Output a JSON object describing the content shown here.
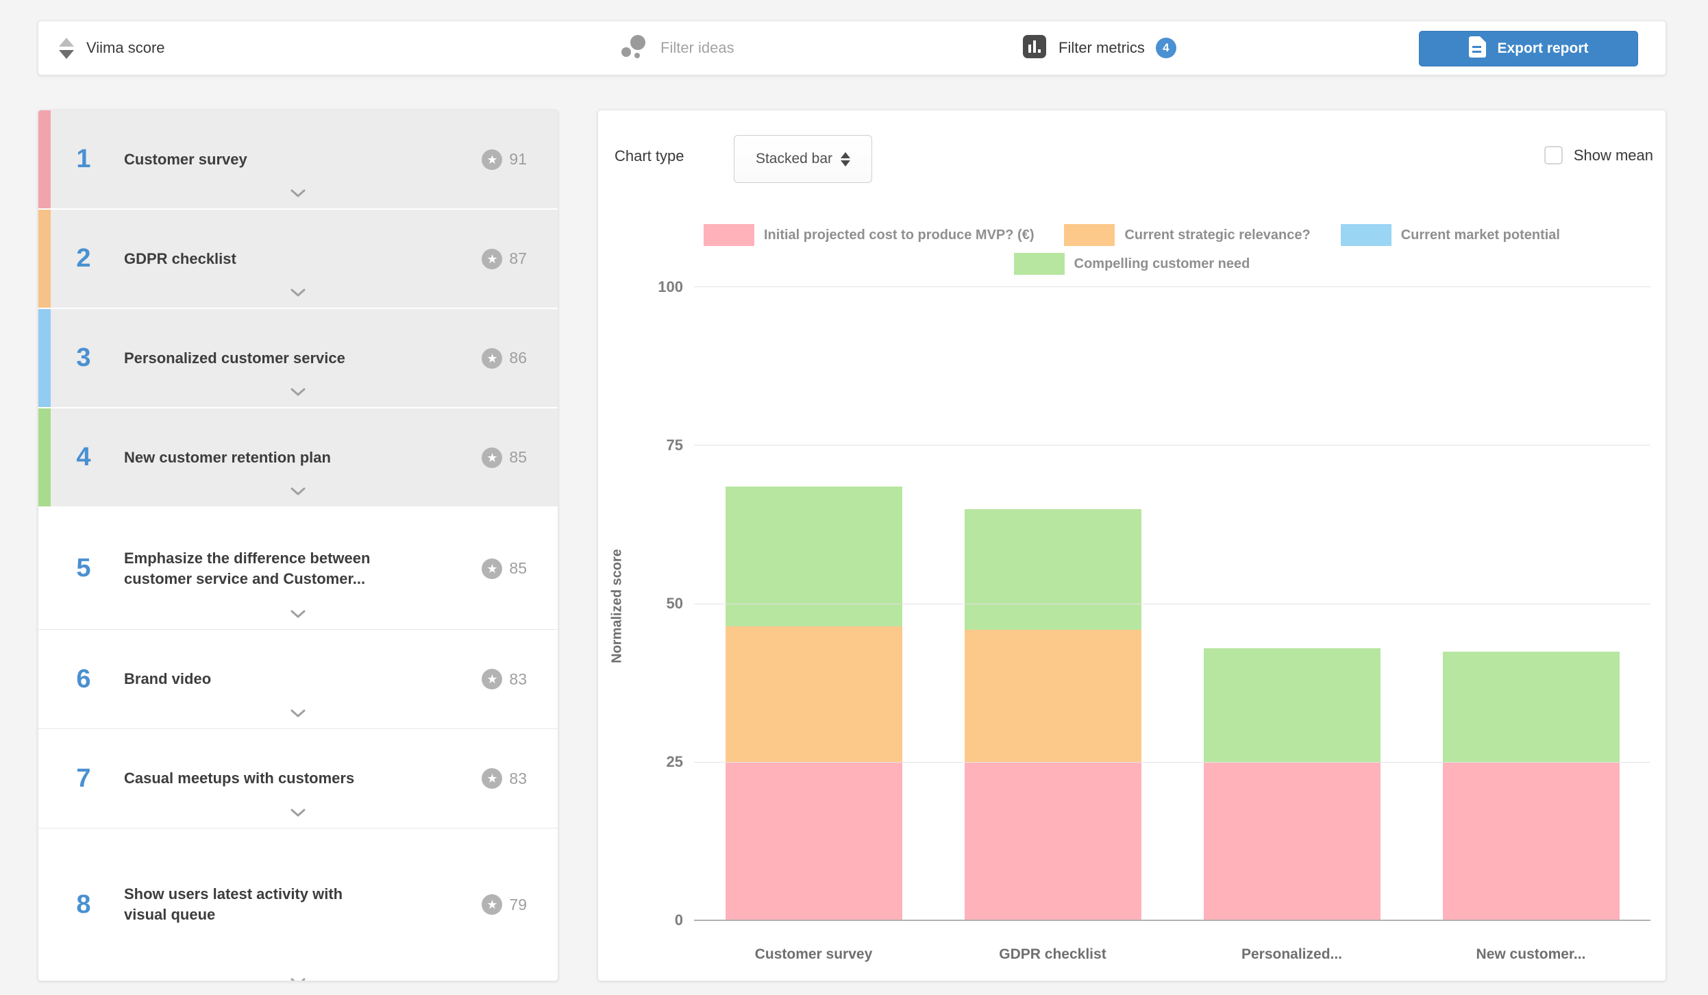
{
  "toolbar": {
    "sort_label": "Viima score",
    "filter_ideas_label": "Filter ideas",
    "filter_metrics_label": "Filter metrics",
    "filter_metrics_count": "4",
    "export_label": "Export report"
  },
  "idea_list": {
    "items": [
      {
        "rank": "1",
        "title": "Customer survey",
        "score": "91",
        "stripe": "#f2a4ad",
        "selected": true
      },
      {
        "rank": "2",
        "title": "GDPR checklist",
        "score": "87",
        "stripe": "#f7c287",
        "selected": true
      },
      {
        "rank": "3",
        "title": "Personalized customer service",
        "score": "86",
        "stripe": "#92ccf2",
        "selected": true
      },
      {
        "rank": "4",
        "title": "New customer retention plan",
        "score": "85",
        "stripe": "#a9db8e",
        "selected": true
      },
      {
        "rank": "5",
        "title": "Emphasize the difference between customer service and Customer...",
        "score": "85",
        "stripe": null,
        "selected": false
      },
      {
        "rank": "6",
        "title": "Brand video",
        "score": "83",
        "stripe": null,
        "selected": false
      },
      {
        "rank": "7",
        "title": "Casual meetups with customers",
        "score": "83",
        "stripe": null,
        "selected": false
      },
      {
        "rank": "8",
        "title": "Show users latest activity with visual queue",
        "score": "79",
        "stripe": null,
        "selected": false
      }
    ]
  },
  "chart_panel": {
    "chart_type_label": "Chart type",
    "chart_type_value": "Stacked bar",
    "show_mean_label": "Show mean",
    "show_mean_checked": false
  },
  "chart_data": {
    "type": "bar",
    "stacked": true,
    "title": "",
    "xlabel": "",
    "ylabel": "Normalized score",
    "ylim": [
      0,
      100
    ],
    "yticks": [
      0,
      25,
      50,
      75,
      100
    ],
    "grid": true,
    "legend_position": "top",
    "categories": [
      "Customer survey",
      "GDPR checklist",
      "Personalized...",
      "New customer..."
    ],
    "series": [
      {
        "name": "Initial projected cost to produce MVP? (€)",
        "color": "#ffb2ba",
        "values": [
          25,
          25,
          25,
          25
        ]
      },
      {
        "name": "Current strategic relevance?",
        "color": "#fcc98b",
        "values": [
          21.5,
          21,
          0,
          0
        ]
      },
      {
        "name": "Current market potential",
        "color": "#9bd5f4",
        "values": [
          0,
          0,
          0,
          0
        ]
      },
      {
        "name": "Compelling customer need",
        "color": "#b7e6a0",
        "values": [
          22,
          19,
          18,
          17.5
        ]
      }
    ]
  }
}
